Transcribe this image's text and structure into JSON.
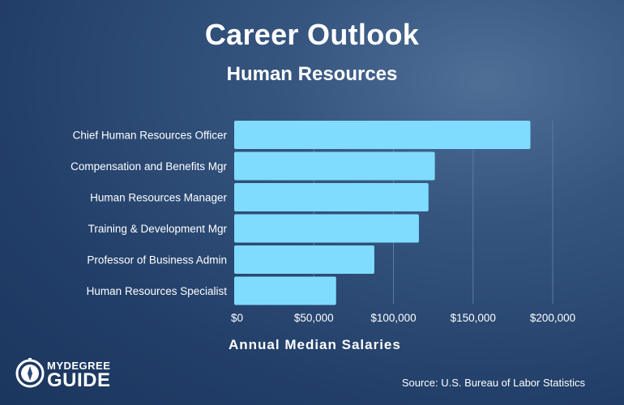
{
  "header": {
    "title": "Career Outlook",
    "subtitle": "Human Resources"
  },
  "chart_data": {
    "type": "bar",
    "orientation": "horizontal",
    "categories": [
      "Chief Human Resources Officer",
      "Compensation and Benefits Mgr",
      "Human Resources Manager",
      "Training & Development Mgr",
      "Professor of Business Admin",
      "Human Resources Specialist"
    ],
    "values": [
      186000,
      126000,
      122000,
      116000,
      88000,
      64000
    ],
    "xlabel": "Annual Median Salaries",
    "ylabel": "",
    "xlim": [
      0,
      200000
    ],
    "xticks": [
      0,
      50000,
      100000,
      150000,
      200000
    ],
    "tick_labels": [
      "$0",
      "$50,000",
      "$100,000",
      "$150,000",
      "$200,000"
    ],
    "grid": "vertical",
    "bar_color": "#7fdcff",
    "gridline_color": "#5e7aa0"
  },
  "footer": {
    "source": "Source: U.S. Bureau of Labor Statistics"
  },
  "logo": {
    "top_text": "MYDEGREE",
    "bottom_text": "GUIDE",
    "icon": "compass-icon"
  }
}
